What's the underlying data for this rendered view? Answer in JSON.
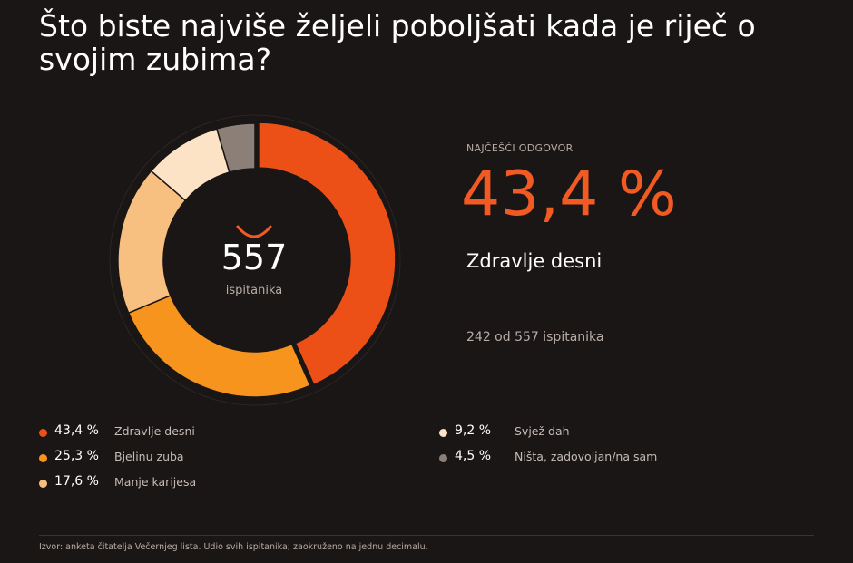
{
  "title": "Što biste najviše željeli poboljšati kada je riječ o svojim zubima?",
  "center": {
    "count": "557",
    "label": "ispitanika"
  },
  "highlight": {
    "kicker": "NAJČEŠĆI ODGOVOR",
    "value": "43,4 %",
    "label": "Zdravlje desni",
    "sub": "242 od 557 ispitanika"
  },
  "source": "Izvor: anketa čitatelja Večernjeg lista. Udio svih ispitanika; zaokruženo na jednu decimalu.",
  "colors": {
    "background": "#1a1615",
    "accent": "#f15a22"
  },
  "legend": [
    {
      "pct": "43,4 %",
      "label": "Zdravlje desni",
      "color": "#ec5017"
    },
    {
      "pct": "25,3 %",
      "label": "Bjelinu zuba",
      "color": "#f7941d"
    },
    {
      "pct": "17,6 %",
      "label": "Manje karijesa",
      "color": "#f8c080"
    },
    {
      "pct": "9,2 %",
      "label": "Svjež dah",
      "color": "#fde3c6"
    },
    {
      "pct": "4,5 %",
      "label": "Ništa, zadovoljan/na sam",
      "color": "#8b7f78"
    }
  ],
  "chart_data": {
    "type": "pie",
    "donut": true,
    "categories": [
      "Zdravlje desni",
      "Bjelinu zuba",
      "Manje karijesa",
      "Svjež dah",
      "Ništa, zadovoljan/na sam"
    ],
    "values": [
      43.4,
      25.3,
      17.6,
      9.2,
      4.5
    ],
    "colors": [
      "#ec5017",
      "#f7941d",
      "#f8c080",
      "#fde3c6",
      "#8b7f78"
    ],
    "total": 557,
    "exploded_index": 0,
    "legend": "bottom"
  }
}
